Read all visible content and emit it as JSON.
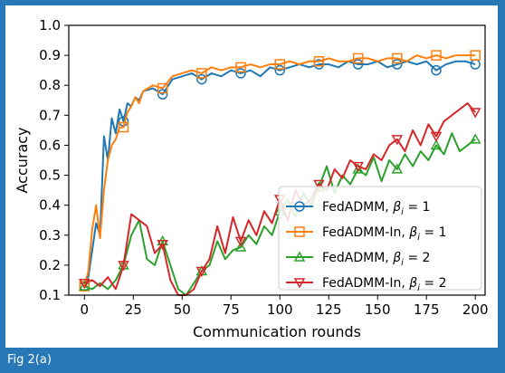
{
  "caption": "Fig 2(a)",
  "chart_data": {
    "type": "line",
    "xlabel": "Communication rounds",
    "ylabel": "Accuracy",
    "xlim": [
      -8,
      205
    ],
    "ylim": [
      0.1,
      1.0
    ],
    "x_ticks": [
      0,
      25,
      50,
      75,
      100,
      125,
      150,
      175,
      200
    ],
    "y_ticks": [
      0.1,
      0.2,
      0.3,
      0.4,
      0.5,
      0.6,
      0.7,
      0.8,
      0.9,
      1.0
    ],
    "grid": false,
    "legend_position": "lower-right",
    "series": [
      {
        "name": "FedADMM, β_i = 1",
        "label_main": "FedADMM, ",
        "label_beta": "β",
        "label_sub": "i",
        "label_eq": " = 1",
        "color": "#1f77b4",
        "marker": "circle",
        "marker_every": 20,
        "x": [
          0,
          2,
          4,
          6,
          8,
          10,
          12,
          14,
          16,
          18,
          20,
          22,
          24,
          26,
          28,
          30,
          35,
          40,
          45,
          50,
          55,
          60,
          65,
          70,
          75,
          80,
          85,
          90,
          95,
          100,
          105,
          110,
          115,
          120,
          125,
          130,
          135,
          140,
          145,
          150,
          155,
          160,
          165,
          170,
          175,
          180,
          185,
          190,
          195,
          200
        ],
        "y": [
          0.13,
          0.16,
          0.25,
          0.34,
          0.3,
          0.63,
          0.55,
          0.69,
          0.64,
          0.72,
          0.68,
          0.74,
          0.73,
          0.76,
          0.75,
          0.78,
          0.79,
          0.77,
          0.82,
          0.83,
          0.84,
          0.82,
          0.84,
          0.83,
          0.85,
          0.84,
          0.85,
          0.83,
          0.86,
          0.85,
          0.86,
          0.87,
          0.86,
          0.87,
          0.87,
          0.86,
          0.88,
          0.87,
          0.87,
          0.88,
          0.86,
          0.87,
          0.88,
          0.87,
          0.88,
          0.85,
          0.87,
          0.88,
          0.88,
          0.87
        ]
      },
      {
        "name": "FedADMM-In, β_i = 1",
        "label_main": "FedADMM-In, ",
        "label_beta": "β",
        "label_sub": "i",
        "label_eq": " = 1",
        "color": "#ff7f0e",
        "marker": "square",
        "marker_every": 20,
        "x": [
          0,
          2,
          4,
          6,
          8,
          10,
          12,
          14,
          16,
          18,
          20,
          22,
          24,
          26,
          28,
          30,
          35,
          40,
          45,
          50,
          55,
          60,
          65,
          70,
          75,
          80,
          85,
          90,
          95,
          100,
          105,
          110,
          115,
          120,
          125,
          130,
          135,
          140,
          145,
          150,
          155,
          160,
          165,
          170,
          175,
          180,
          185,
          190,
          195,
          200
        ],
        "y": [
          0.13,
          0.18,
          0.32,
          0.4,
          0.29,
          0.45,
          0.55,
          0.6,
          0.62,
          0.66,
          0.66,
          0.71,
          0.73,
          0.76,
          0.74,
          0.78,
          0.8,
          0.79,
          0.83,
          0.84,
          0.85,
          0.84,
          0.86,
          0.85,
          0.86,
          0.86,
          0.87,
          0.86,
          0.87,
          0.87,
          0.88,
          0.87,
          0.88,
          0.88,
          0.89,
          0.88,
          0.88,
          0.89,
          0.89,
          0.88,
          0.89,
          0.89,
          0.88,
          0.9,
          0.89,
          0.9,
          0.89,
          0.9,
          0.9,
          0.9
        ]
      },
      {
        "name": "FedADMM, β_i = 2",
        "label_main": "FedADMM, ",
        "label_beta": "β",
        "label_sub": "i",
        "label_eq": " = 2",
        "color": "#2ca02c",
        "marker": "triangle-up",
        "marker_every": 20,
        "x": [
          0,
          4,
          8,
          12,
          16,
          20,
          24,
          28,
          32,
          36,
          40,
          44,
          48,
          52,
          56,
          60,
          64,
          68,
          72,
          76,
          80,
          84,
          88,
          92,
          96,
          100,
          104,
          108,
          112,
          116,
          120,
          124,
          128,
          132,
          136,
          140,
          144,
          148,
          152,
          156,
          160,
          164,
          168,
          172,
          176,
          180,
          184,
          188,
          192,
          196,
          200
        ],
        "y": [
          0.13,
          0.12,
          0.14,
          0.12,
          0.15,
          0.2,
          0.3,
          0.35,
          0.22,
          0.2,
          0.28,
          0.2,
          0.12,
          0.1,
          0.14,
          0.18,
          0.2,
          0.28,
          0.22,
          0.25,
          0.26,
          0.3,
          0.27,
          0.33,
          0.3,
          0.38,
          0.42,
          0.36,
          0.44,
          0.4,
          0.46,
          0.53,
          0.44,
          0.5,
          0.47,
          0.52,
          0.5,
          0.56,
          0.48,
          0.55,
          0.52,
          0.57,
          0.53,
          0.58,
          0.55,
          0.6,
          0.57,
          0.64,
          0.58,
          0.6,
          0.62
        ]
      },
      {
        "name": "FedADMM-In, β_i = 2",
        "label_main": "FedADMM-In, ",
        "label_beta": "β",
        "label_sub": "i",
        "label_eq": " = 2",
        "color": "#d62728",
        "marker": "triangle-down",
        "marker_every": 20,
        "x": [
          0,
          4,
          8,
          12,
          16,
          20,
          24,
          28,
          32,
          36,
          40,
          44,
          48,
          52,
          56,
          60,
          64,
          68,
          72,
          76,
          80,
          84,
          88,
          92,
          96,
          100,
          104,
          108,
          112,
          116,
          120,
          124,
          128,
          132,
          136,
          140,
          144,
          148,
          152,
          156,
          160,
          164,
          168,
          172,
          176,
          180,
          184,
          188,
          192,
          196,
          200
        ],
        "y": [
          0.14,
          0.15,
          0.13,
          0.16,
          0.12,
          0.2,
          0.37,
          0.35,
          0.33,
          0.24,
          0.27,
          0.15,
          0.1,
          0.1,
          0.12,
          0.18,
          0.22,
          0.33,
          0.24,
          0.36,
          0.28,
          0.35,
          0.3,
          0.38,
          0.34,
          0.42,
          0.35,
          0.45,
          0.4,
          0.42,
          0.47,
          0.45,
          0.52,
          0.49,
          0.55,
          0.53,
          0.52,
          0.57,
          0.55,
          0.6,
          0.62,
          0.58,
          0.65,
          0.6,
          0.67,
          0.63,
          0.68,
          0.7,
          0.72,
          0.74,
          0.71
        ]
      }
    ]
  }
}
